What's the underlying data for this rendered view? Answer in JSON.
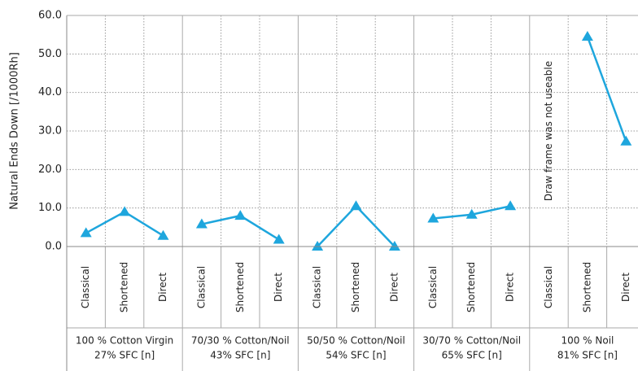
{
  "chart_data": {
    "type": "line",
    "ylabel": "Natural Ends Down [/1000Rh]",
    "ylim": [
      0,
      60
    ],
    "yticks": [
      {
        "value": 0,
        "label": "0.0"
      },
      {
        "value": 10,
        "label": "10.0"
      },
      {
        "value": 20,
        "label": "20.0"
      },
      {
        "value": 30,
        "label": "30.0"
      },
      {
        "value": 40,
        "label": "40.0"
      },
      {
        "value": 50,
        "label": "50.0"
      },
      {
        "value": 60,
        "label": "60.0"
      }
    ],
    "grid": true,
    "color": "#1ea6dd",
    "annotation": "Draw frame  was not useable",
    "groups": [
      {
        "label": [
          "100 % Cotton Virgin",
          "27% SFC [n]"
        ],
        "categories": [
          "Classical",
          "Shortened",
          "Direct"
        ],
        "values": [
          3.5,
          9.0,
          2.8
        ]
      },
      {
        "label": [
          "70/30 % Cotton/Noil",
          "43% SFC [n]"
        ],
        "categories": [
          "Classical",
          "Shortened",
          "Direct"
        ],
        "values": [
          5.8,
          8.0,
          1.8
        ]
      },
      {
        "label": [
          "50/50 % Cotton/Noil",
          "54% SFC [n]"
        ],
        "categories": [
          "Classical",
          "Shortened",
          "Direct"
        ],
        "values": [
          0.0,
          10.5,
          0.0
        ]
      },
      {
        "label": [
          "30/70 % Cotton/Noil",
          "65% SFC [n]"
        ],
        "categories": [
          "Classical",
          "Shortened",
          "Direct"
        ],
        "values": [
          7.3,
          8.3,
          10.5
        ]
      },
      {
        "label": [
          "100 % Noil",
          "81% SFC [n]"
        ],
        "categories": [
          "Classical",
          "Shortened",
          "Direct"
        ],
        "values": [
          null,
          54.5,
          27.3
        ]
      }
    ]
  }
}
